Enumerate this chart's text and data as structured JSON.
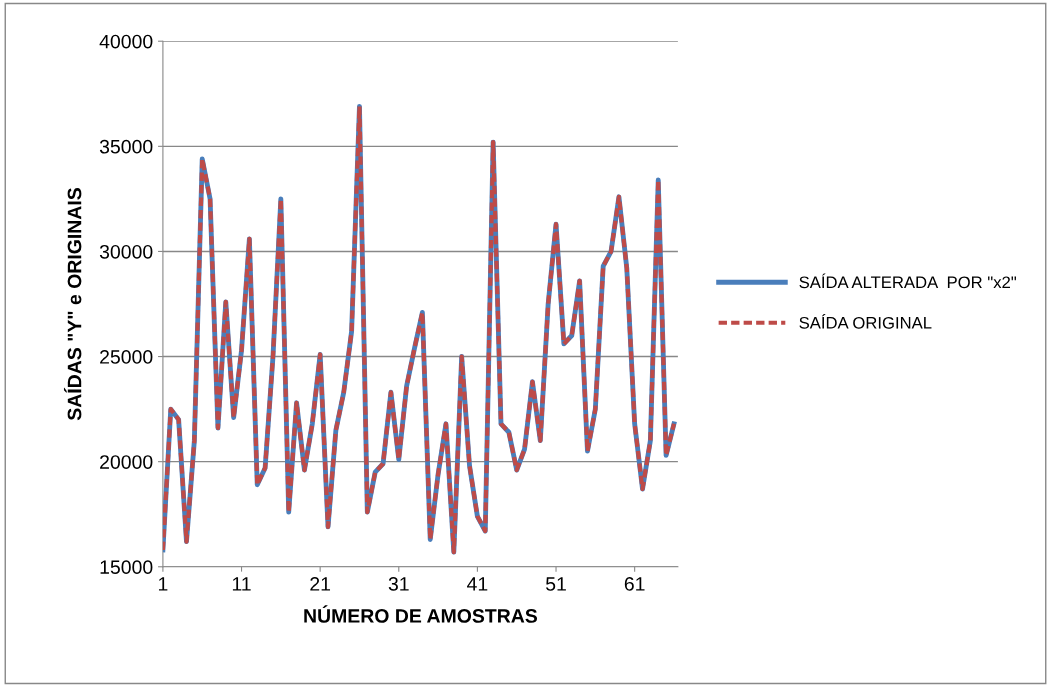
{
  "chart_data": {
    "type": "line",
    "xlabel": "NÚMERO DE AMOSTRAS",
    "ylabel": "SAÍDAS \"Y\" e ORIGINAIS",
    "x": [
      1,
      2,
      3,
      4,
      5,
      6,
      7,
      8,
      9,
      10,
      11,
      12,
      13,
      14,
      15,
      16,
      17,
      18,
      19,
      20,
      21,
      22,
      23,
      24,
      25,
      26,
      27,
      28,
      29,
      30,
      31,
      32,
      33,
      34,
      35,
      36,
      37,
      38,
      39,
      40,
      41,
      42,
      43,
      44,
      45,
      46,
      47,
      48,
      49,
      50,
      51,
      52,
      53,
      54,
      55,
      56,
      57,
      58,
      59,
      60,
      61,
      62,
      63,
      64,
      65,
      66
    ],
    "series": [
      {
        "name": "SAÍDA ALTERADA  POR \"x2\"",
        "color": "#4a7ebb",
        "line_style": "solid",
        "values": [
          15800,
          22500,
          22000,
          16200,
          21000,
          34400,
          32500,
          21600,
          27600,
          22100,
          25300,
          30600,
          18900,
          19700,
          25000,
          32500,
          17600,
          22800,
          19600,
          21800,
          25100,
          16900,
          21500,
          23300,
          26200,
          36900,
          17600,
          19500,
          19900,
          23300,
          20100,
          23600,
          25400,
          27100,
          16300,
          19400,
          21800,
          15700,
          25000,
          19800,
          17400,
          16700,
          35200,
          21800,
          21400,
          19600,
          20600,
          23800,
          21000,
          27500,
          31300,
          25600,
          26000,
          28600,
          20500,
          22500,
          29300,
          30000,
          32600,
          29200,
          21800,
          18700,
          21000,
          33400,
          20300,
          21800
        ]
      },
      {
        "name": "SAÍDA ORIGINAL",
        "color": "#be4b48",
        "line_style": "dashed",
        "values": [
          15800,
          22500,
          22000,
          16200,
          21000,
          34400,
          32500,
          21600,
          27600,
          22100,
          25300,
          30600,
          18900,
          19700,
          25000,
          32500,
          17600,
          22800,
          19600,
          21800,
          25100,
          16900,
          21500,
          23300,
          26200,
          36900,
          17600,
          19500,
          19900,
          23300,
          20100,
          23600,
          25400,
          27100,
          16300,
          19400,
          21800,
          15700,
          25000,
          19800,
          17400,
          16700,
          35200,
          21800,
          21400,
          19600,
          20600,
          23800,
          21000,
          27500,
          31300,
          25600,
          26000,
          28600,
          20500,
          22500,
          29300,
          30000,
          32600,
          29200,
          21800,
          18700,
          21000,
          33400,
          20300,
          21800
        ]
      }
    ],
    "xlim": [
      1,
      66.5
    ],
    "xticks": [
      1,
      11,
      21,
      31,
      41,
      51,
      61
    ],
    "ylim": [
      15000,
      40000
    ],
    "yticks": [
      15000,
      20000,
      25000,
      30000,
      35000,
      40000
    ],
    "grid": "y",
    "legend": "right",
    "marker": "none"
  }
}
